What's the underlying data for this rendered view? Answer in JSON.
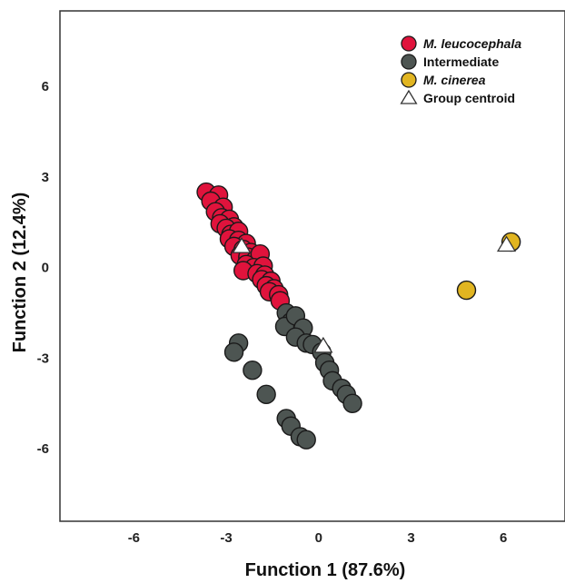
{
  "chart_data": {
    "type": "scatter",
    "xlabel": "Function 1 (87.6%)",
    "ylabel": "Function 2 (12.4%)",
    "xlim": [
      -8.4,
      8.0
    ],
    "ylim": [
      -8.4,
      8.5
    ],
    "xticks": [
      -6,
      -3,
      0,
      3,
      6
    ],
    "yticks": [
      6,
      3,
      0,
      -3,
      -6
    ],
    "xtick_labels": [
      "-6",
      "-3",
      "0",
      "3",
      "6"
    ],
    "ytick_labels": [
      "6",
      "3",
      "0",
      "-3",
      "-6"
    ],
    "grid": false,
    "legend_position": "top-right",
    "series": [
      {
        "name": "M. leucocephala",
        "color": "#e0133c",
        "italic": true,
        "points": [
          [
            -3.65,
            2.5
          ],
          [
            -3.25,
            2.4
          ],
          [
            -3.5,
            2.2
          ],
          [
            -3.1,
            2.0
          ],
          [
            -3.35,
            1.85
          ],
          [
            -3.15,
            1.65
          ],
          [
            -2.9,
            1.6
          ],
          [
            -3.2,
            1.45
          ],
          [
            -2.75,
            1.35
          ],
          [
            -3.0,
            1.3
          ],
          [
            -2.85,
            1.1
          ],
          [
            -2.6,
            1.2
          ],
          [
            -2.9,
            0.95
          ],
          [
            -2.6,
            0.9
          ],
          [
            -2.35,
            0.8
          ],
          [
            -2.75,
            0.7
          ],
          [
            -2.45,
            0.6
          ],
          [
            -2.2,
            0.5
          ],
          [
            -2.55,
            0.4
          ],
          [
            -2.3,
            0.35
          ],
          [
            -2.05,
            0.25
          ],
          [
            -1.9,
            0.45
          ],
          [
            -2.35,
            0.1
          ],
          [
            -2.1,
            0.0
          ],
          [
            -1.8,
            0.05
          ],
          [
            -2.45,
            -0.1
          ],
          [
            -2.0,
            -0.2
          ],
          [
            -1.75,
            -0.25
          ],
          [
            -1.85,
            -0.4
          ],
          [
            -1.55,
            -0.45
          ],
          [
            -1.7,
            -0.6
          ],
          [
            -1.45,
            -0.7
          ],
          [
            -1.6,
            -0.8
          ],
          [
            -1.3,
            -0.9
          ],
          [
            -1.25,
            -1.1
          ]
        ]
      },
      {
        "name": "Intermediate",
        "color": "#4d5552",
        "italic": false,
        "points": [
          [
            -1.05,
            -1.5
          ],
          [
            -0.9,
            -1.8
          ],
          [
            -1.1,
            -1.95
          ],
          [
            -0.75,
            -1.6
          ],
          [
            -0.5,
            -2.0
          ],
          [
            -0.75,
            -2.3
          ],
          [
            -0.4,
            -2.5
          ],
          [
            -0.2,
            -2.55
          ],
          [
            0.1,
            -2.8
          ],
          [
            0.2,
            -3.15
          ],
          [
            0.35,
            -3.4
          ],
          [
            0.45,
            -3.75
          ],
          [
            0.75,
            -4.0
          ],
          [
            0.9,
            -4.2
          ],
          [
            1.1,
            -4.5
          ],
          [
            -2.6,
            -2.5
          ],
          [
            -2.75,
            -2.8
          ],
          [
            -2.15,
            -3.4
          ],
          [
            -1.7,
            -4.2
          ],
          [
            -1.05,
            -5.0
          ],
          [
            -0.9,
            -5.25
          ],
          [
            -0.6,
            -5.6
          ],
          [
            -0.4,
            -5.7
          ]
        ]
      },
      {
        "name": "M. cinerea",
        "color": "#e1b521",
        "italic": true,
        "points": [
          [
            6.25,
            0.85
          ],
          [
            4.8,
            -0.75
          ]
        ]
      },
      {
        "name": "Group centroid",
        "marker": "triangle",
        "color": "#ffffff",
        "italic": false,
        "points": [
          [
            -2.5,
            0.7
          ],
          [
            0.15,
            -2.6
          ],
          [
            6.1,
            0.75
          ]
        ]
      }
    ]
  }
}
